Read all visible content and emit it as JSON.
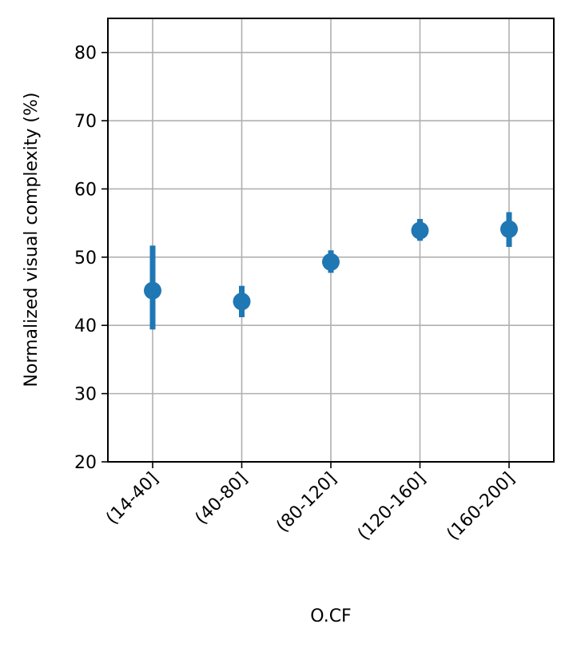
{
  "chart_data": {
    "type": "scatter",
    "title": "",
    "xlabel": "O.CF",
    "ylabel": "Normalized visual complexity (%)",
    "categories": [
      "(14-40]",
      "(40-80]",
      "(80-120]",
      "(120-160]",
      "(160-200]"
    ],
    "series": [
      {
        "values": [
          45.1,
          43.5,
          49.3,
          53.9,
          54.1
        ],
        "err_low": [
          39.4,
          41.2,
          47.7,
          52.4,
          51.5
        ],
        "err_high": [
          51.7,
          45.8,
          51.0,
          55.6,
          56.6
        ],
        "color": "#1f77b4"
      }
    ],
    "ylim": [
      20,
      85
    ],
    "yticks": [
      20,
      30,
      40,
      50,
      60,
      70,
      80
    ],
    "grid": true,
    "legend": "none",
    "colors": {
      "marker": "#1f77b4",
      "grid": "#b0b0b0",
      "axis": "#000000"
    }
  }
}
